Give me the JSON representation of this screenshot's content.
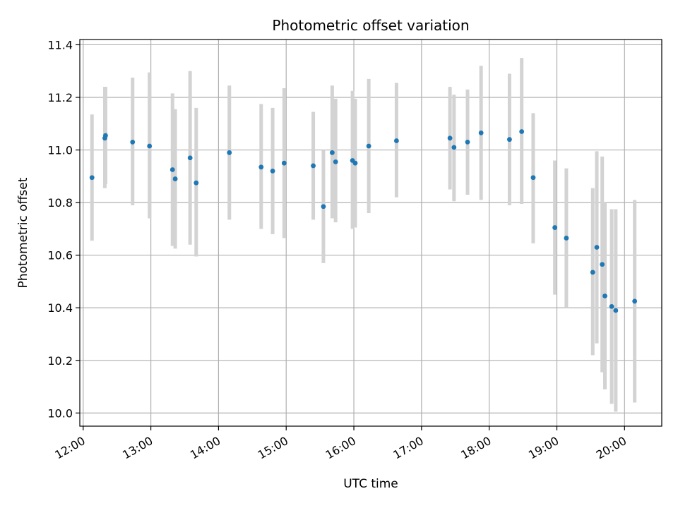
{
  "chart_data": {
    "type": "scatter",
    "title": "Photometric offset variation",
    "xlabel": "UTC time",
    "ylabel": "Photometric offset",
    "x_unit": "hours UTC",
    "xlim": [
      11.95,
      20.55
    ],
    "ylim": [
      9.95,
      11.42
    ],
    "x_ticks": [
      12,
      13,
      14,
      15,
      16,
      17,
      18,
      19,
      20
    ],
    "x_tick_labels": [
      "12:00",
      "13:00",
      "14:00",
      "15:00",
      "16:00",
      "17:00",
      "18:00",
      "19:00",
      "20:00"
    ],
    "y_ticks": [
      10.0,
      10.2,
      10.4,
      10.6,
      10.8,
      11.0,
      11.2,
      11.4
    ],
    "y_tick_labels": [
      "10.0",
      "10.2",
      "10.4",
      "10.6",
      "10.8",
      "11.0",
      "11.2",
      "11.4"
    ],
    "grid": true,
    "colors": {
      "point": "#1f77b4",
      "errorbar": "#d3d3d3",
      "grid": "#b0b0b0"
    },
    "points": [
      {
        "x": 12.13,
        "y": 10.895,
        "err_low": 10.655,
        "err_high": 11.135
      },
      {
        "x": 12.32,
        "y": 11.045,
        "err_low": 10.855,
        "err_high": 11.24
      },
      {
        "x": 12.33,
        "y": 11.055,
        "err_low": 10.87,
        "err_high": 11.24
      },
      {
        "x": 12.73,
        "y": 11.03,
        "err_low": 10.79,
        "err_high": 11.275
      },
      {
        "x": 12.98,
        "y": 11.015,
        "err_low": 10.74,
        "err_high": 11.295
      },
      {
        "x": 13.32,
        "y": 10.925,
        "err_low": 10.635,
        "err_high": 11.215
      },
      {
        "x": 13.36,
        "y": 10.89,
        "err_low": 10.625,
        "err_high": 11.155
      },
      {
        "x": 13.58,
        "y": 10.97,
        "err_low": 10.64,
        "err_high": 11.3
      },
      {
        "x": 13.67,
        "y": 10.875,
        "err_low": 10.595,
        "err_high": 11.16
      },
      {
        "x": 14.16,
        "y": 10.99,
        "err_low": 10.735,
        "err_high": 11.245
      },
      {
        "x": 14.63,
        "y": 10.935,
        "err_low": 10.7,
        "err_high": 11.175
      },
      {
        "x": 14.8,
        "y": 10.92,
        "err_low": 10.68,
        "err_high": 11.16
      },
      {
        "x": 14.97,
        "y": 10.95,
        "err_low": 10.665,
        "err_high": 11.235
      },
      {
        "x": 15.4,
        "y": 10.94,
        "err_low": 10.735,
        "err_high": 11.145
      },
      {
        "x": 15.55,
        "y": 10.785,
        "err_low": 10.57,
        "err_high": 11.0
      },
      {
        "x": 15.68,
        "y": 10.99,
        "err_low": 10.74,
        "err_high": 11.245
      },
      {
        "x": 15.73,
        "y": 10.955,
        "err_low": 10.725,
        "err_high": 11.195
      },
      {
        "x": 15.98,
        "y": 10.96,
        "err_low": 10.7,
        "err_high": 11.225
      },
      {
        "x": 16.02,
        "y": 10.95,
        "err_low": 10.705,
        "err_high": 11.195
      },
      {
        "x": 16.22,
        "y": 11.015,
        "err_low": 10.76,
        "err_high": 11.27
      },
      {
        "x": 16.63,
        "y": 11.035,
        "err_low": 10.82,
        "err_high": 11.255
      },
      {
        "x": 17.42,
        "y": 11.045,
        "err_low": 10.85,
        "err_high": 11.24
      },
      {
        "x": 17.48,
        "y": 11.01,
        "err_low": 10.805,
        "err_high": 11.21
      },
      {
        "x": 17.68,
        "y": 11.03,
        "err_low": 10.83,
        "err_high": 11.23
      },
      {
        "x": 17.88,
        "y": 11.065,
        "err_low": 10.81,
        "err_high": 11.32
      },
      {
        "x": 18.3,
        "y": 11.04,
        "err_low": 10.79,
        "err_high": 11.29
      },
      {
        "x": 18.48,
        "y": 11.07,
        "err_low": 10.795,
        "err_high": 11.35
      },
      {
        "x": 18.65,
        "y": 10.895,
        "err_low": 10.645,
        "err_high": 11.14
      },
      {
        "x": 18.97,
        "y": 10.705,
        "err_low": 10.45,
        "err_high": 10.96
      },
      {
        "x": 19.14,
        "y": 10.665,
        "err_low": 10.4,
        "err_high": 10.93
      },
      {
        "x": 19.53,
        "y": 10.535,
        "err_low": 10.22,
        "err_high": 10.855
      },
      {
        "x": 19.59,
        "y": 10.63,
        "err_low": 10.265,
        "err_high": 10.995
      },
      {
        "x": 19.67,
        "y": 10.565,
        "err_low": 10.155,
        "err_high": 10.975
      },
      {
        "x": 19.71,
        "y": 10.445,
        "err_low": 10.09,
        "err_high": 10.8
      },
      {
        "x": 19.81,
        "y": 10.405,
        "err_low": 10.035,
        "err_high": 10.775
      },
      {
        "x": 19.87,
        "y": 10.39,
        "err_low": 10.005,
        "err_high": 10.775
      },
      {
        "x": 20.15,
        "y": 10.425,
        "err_low": 10.04,
        "err_high": 10.81
      }
    ]
  }
}
